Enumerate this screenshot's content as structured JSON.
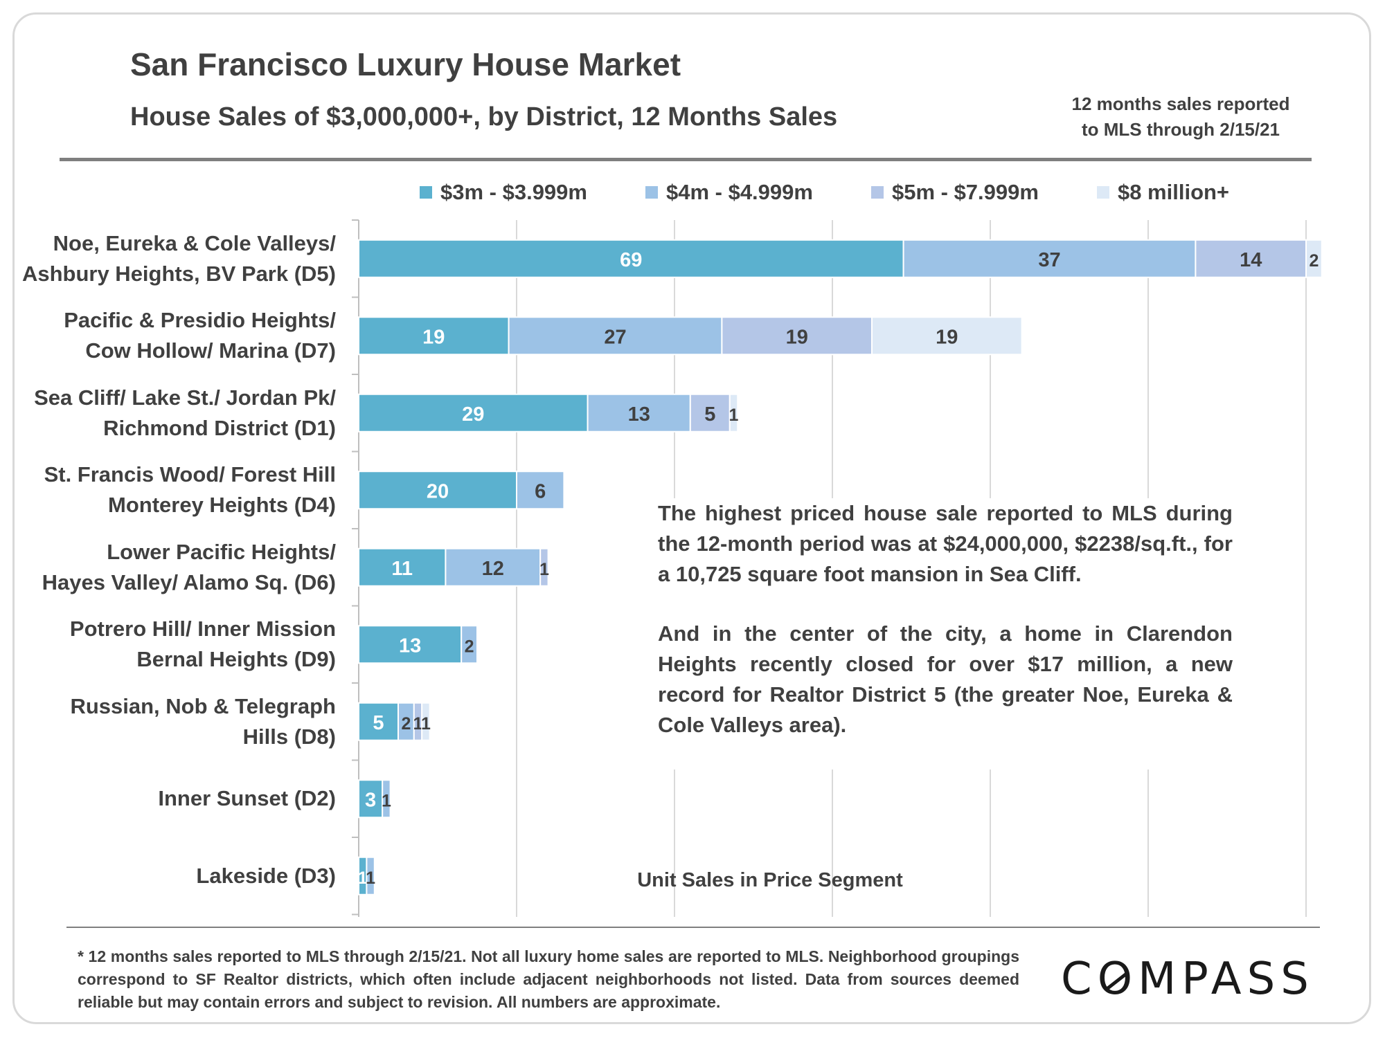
{
  "title": "San Francisco Luxury House Market",
  "subtitle": "House Sales of $3,000,000+, by District, 12 Months Sales",
  "note_lines": [
    "12 months sales reported",
    "to MLS through 2/15/21"
  ],
  "annotation": {
    "para1": "The highest priced house sale reported to MLS during the 12-month period was at $24,000,000, $2238/sq.ft., for a 10,725 square foot mansion in Sea Cliff.",
    "para2": "And in the center of the city, a home in Clarendon Heights recently closed for over $17 million, a new record for Realtor District 5 (the greater Noe, Eureka & Cole Valleys area)."
  },
  "footnote": "* 12 months sales reported to MLS through 2/15/21. Not all luxury home sales are reported to MLS. Neighborhood groupings correspond to SF Realtor districts, which often include adjacent neighborhoods not listed. Data from sources deemed reliable but may contain errors and subject to revision. All numbers are approximate.",
  "logo": {
    "pre": "C",
    "mark": "O",
    "post": "MPASS"
  },
  "colors": {
    "s1": "#5bb1cf",
    "s2": "#9cc2e6",
    "s3": "#b4c6e7",
    "s4": "#dde9f6",
    "label_light": "#ffffff",
    "label_dark": "#404040"
  },
  "chart_data": {
    "type": "bar",
    "orientation": "horizontal",
    "stacked": true,
    "xlabel": "Unit Sales in Price Segment",
    "xlim": [
      0,
      122
    ],
    "grid": true,
    "legend_position": "top",
    "categories": [
      [
        "Noe, Eureka & Cole Valleys/",
        "Ashbury Heights, BV Park (D5)"
      ],
      [
        "Pacific & Presidio Heights/",
        "Cow Hollow/ Marina (D7)"
      ],
      [
        "Sea Cliff/ Lake St./ Jordan Pk/",
        "Richmond District (D1)"
      ],
      [
        "St. Francis Wood/ Forest Hill",
        "Monterey Heights (D4)"
      ],
      [
        "Lower Pacific Heights/",
        "Hayes Valley/ Alamo Sq. (D6)"
      ],
      [
        "Potrero Hill/ Inner Mission",
        "Bernal Heights (D9)"
      ],
      [
        "Russian, Nob & Telegraph",
        "Hills (D8)"
      ],
      [
        "Inner Sunset (D2)"
      ],
      [
        "Lakeside (D3)"
      ]
    ],
    "series": [
      {
        "name": "$3m - $3.999m",
        "values": [
          69,
          19,
          29,
          20,
          11,
          13,
          5,
          3,
          1
        ]
      },
      {
        "name": "$4m - $4.999m",
        "values": [
          37,
          27,
          13,
          6,
          12,
          2,
          2,
          1,
          1
        ]
      },
      {
        "name": "$5m - $7.999m",
        "values": [
          14,
          19,
          5,
          0,
          1,
          0,
          1,
          0,
          0
        ]
      },
      {
        "name": "$8 million+",
        "values": [
          2,
          19,
          1,
          0,
          0,
          0,
          1,
          0,
          0
        ]
      }
    ]
  }
}
